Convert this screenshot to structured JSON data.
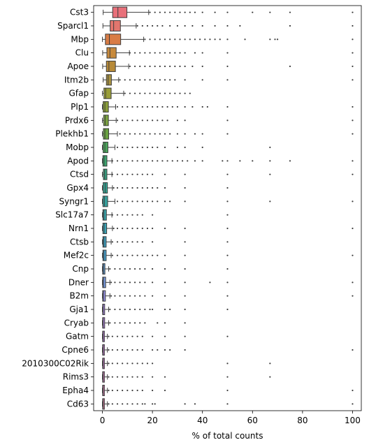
{
  "chart_data": {
    "type": "box",
    "title": "",
    "xlabel": "% of total counts",
    "ylabel": "",
    "xlim": [
      -3.5,
      103.5
    ],
    "xticks": [
      0,
      20,
      40,
      60,
      80,
      100
    ],
    "xtick_labels": [
      "0",
      "20",
      "40",
      "60",
      "80",
      "100"
    ],
    "grid": false,
    "orientation": "horizontal",
    "categories": [
      "Cst3",
      "Sparcl1",
      "Mbp",
      "Clu",
      "Apoe",
      "Itm2b",
      "Gfap",
      "Plp1",
      "Prdx6",
      "Plekhb1",
      "Mobp",
      "Apod",
      "Ctsd",
      "Gpx4",
      "Syngr1",
      "Slc17a7",
      "Nrn1",
      "Ctsb",
      "Mef2c",
      "Cnp",
      "Dner",
      "B2m",
      "Gja1",
      "Cryab",
      "Gatm",
      "Cpne6",
      "2010300C02Rik",
      "Rims3",
      "Epha4",
      "Cd63"
    ],
    "colors": [
      "#e8707a",
      "#e2766e",
      "#d97c45",
      "#c88a3c",
      "#b78a38",
      "#a99240",
      "#999d38",
      "#8a9e38",
      "#7aa240",
      "#6aa341",
      "#4aa55a",
      "#3aa66e",
      "#36a583",
      "#34a292",
      "#36a29e",
      "#37a2a8",
      "#38a2b5",
      "#3da1c2",
      "#45a0ce",
      "#5b9cd6",
      "#779ae0",
      "#9691e8",
      "#a98ae8",
      "#b787e8",
      "#c283e4",
      "#cb80dc",
      "#d27fd0",
      "#d880c2",
      "#de80b4",
      "#e381a6"
    ],
    "boxes": [
      {
        "q1": 4.1,
        "median": 6.2,
        "q3": 9.8,
        "whisker_low": 0.3,
        "whisker_high": 18.5,
        "outliers": [
          19,
          21,
          23,
          25,
          27,
          29,
          31,
          33,
          35,
          37,
          40,
          45,
          50,
          60,
          67,
          75,
          100
        ]
      },
      {
        "q1": 3.1,
        "median": 4.5,
        "q3": 7.2,
        "whisker_low": 0.2,
        "whisker_high": 13.5,
        "outliers": [
          14,
          16,
          18,
          20,
          22,
          24,
          27,
          30,
          33,
          36,
          40,
          45,
          50,
          55,
          75,
          100
        ]
      },
      {
        "q1": 1.2,
        "median": 2.8,
        "q3": 7.3,
        "whisker_low": 0.0,
        "whisker_high": 16.5,
        "outliers": [
          17,
          19,
          21,
          23,
          25,
          27,
          29,
          31,
          33,
          35,
          37,
          39,
          41,
          43,
          45,
          47,
          50,
          57,
          67,
          69,
          70,
          100
        ]
      },
      {
        "q1": 1.8,
        "median": 3.0,
        "q3": 5.5,
        "whisker_low": 0.1,
        "whisker_high": 10.8,
        "outliers": [
          11,
          13,
          15,
          17,
          19,
          21,
          23,
          25,
          27,
          29,
          31,
          33,
          37,
          40,
          50,
          100
        ]
      },
      {
        "q1": 1.6,
        "median": 2.6,
        "q3": 5.2,
        "whisker_low": 0.1,
        "whisker_high": 10.5,
        "outliers": [
          11,
          13,
          15,
          17,
          19,
          21,
          23,
          25,
          27,
          29,
          31,
          33,
          36,
          40,
          50,
          75,
          100
        ]
      },
      {
        "q1": 1.6,
        "median": 2.3,
        "q3": 3.6,
        "whisker_low": 0.3,
        "whisker_high": 6.5,
        "outliers": [
          7,
          9,
          11,
          13,
          15,
          17,
          19,
          21,
          23,
          25,
          27,
          29,
          33,
          40,
          50,
          100
        ]
      },
      {
        "q1": 0.6,
        "median": 1.3,
        "q3": 3.5,
        "whisker_low": 0.0,
        "whisker_high": 8.5,
        "outliers": [
          9,
          11,
          13,
          15,
          17,
          19,
          21,
          23,
          25,
          27,
          29,
          31,
          33,
          35
        ]
      },
      {
        "q1": 0.3,
        "median": 1.0,
        "q3": 2.4,
        "whisker_low": 0.0,
        "whisker_high": 5.3,
        "outliers": [
          6,
          8,
          10,
          12,
          14,
          16,
          18,
          20,
          22,
          24,
          26,
          28,
          30,
          33,
          36,
          40,
          42,
          50,
          100
        ]
      },
      {
        "q1": 0.5,
        "median": 1.1,
        "q3": 2.4,
        "whisker_low": 0.0,
        "whisker_high": 5.5,
        "outliers": [
          6,
          8,
          10,
          12,
          14,
          16,
          18,
          20,
          22,
          24,
          26,
          30,
          33,
          50,
          100
        ]
      },
      {
        "q1": 0.4,
        "median": 1.0,
        "q3": 2.5,
        "whisker_low": 0.0,
        "whisker_high": 6.0,
        "outliers": [
          7,
          9,
          11,
          13,
          15,
          17,
          19,
          21,
          23,
          25,
          27,
          30,
          33,
          37,
          40,
          50,
          100
        ]
      },
      {
        "q1": 0.3,
        "median": 1.0,
        "q3": 2.2,
        "whisker_low": 0.0,
        "whisker_high": 5.0,
        "outliers": [
          6,
          8,
          10,
          12,
          14,
          16,
          18,
          20,
          22,
          25,
          30,
          33,
          40,
          67
        ]
      },
      {
        "q1": 0.2,
        "median": 0.7,
        "q3": 1.8,
        "whisker_low": 0.0,
        "whisker_high": 3.8,
        "outliers": [
          4,
          6,
          8,
          10,
          12,
          14,
          16,
          18,
          20,
          22,
          24,
          26,
          28,
          30,
          32,
          34,
          37,
          40,
          48,
          50,
          55,
          60,
          67,
          75,
          100
        ]
      },
      {
        "q1": 0.4,
        "median": 0.9,
        "q3": 1.8,
        "whisker_low": 0.0,
        "whisker_high": 3.8,
        "outliers": [
          4,
          6,
          8,
          10,
          12,
          14,
          16,
          18,
          20,
          25,
          33,
          50,
          67,
          100
        ]
      },
      {
        "q1": 0.3,
        "median": 1.1,
        "q3": 2.0,
        "whisker_low": 0.0,
        "whisker_high": 4.0,
        "outliers": [
          4.5,
          6,
          8,
          10,
          12,
          14,
          16,
          18,
          20,
          22,
          25,
          33,
          50
        ]
      },
      {
        "q1": 0.2,
        "median": 0.8,
        "q3": 2.1,
        "whisker_low": 0.0,
        "whisker_high": 5.0,
        "outliers": [
          6,
          8,
          10,
          12,
          14,
          16,
          18,
          20,
          22,
          25,
          27,
          33,
          50,
          67,
          100
        ]
      },
      {
        "q1": 0.2,
        "median": 0.6,
        "q3": 1.6,
        "whisker_low": 0.0,
        "whisker_high": 3.8,
        "outliers": [
          4,
          6,
          8,
          10,
          12,
          14,
          16,
          20,
          50
        ]
      },
      {
        "q1": 0.2,
        "median": 0.7,
        "q3": 1.7,
        "whisker_low": 0.0,
        "whisker_high": 4.0,
        "outliers": [
          4.5,
          6,
          8,
          10,
          12,
          14,
          16,
          18,
          20,
          25,
          33,
          50,
          100
        ]
      },
      {
        "q1": 0.2,
        "median": 0.6,
        "q3": 1.5,
        "whisker_low": 0.0,
        "whisker_high": 3.5,
        "outliers": [
          4,
          6,
          8,
          10,
          12,
          14,
          16,
          20,
          33,
          50
        ]
      },
      {
        "q1": 0.2,
        "median": 0.6,
        "q3": 1.5,
        "whisker_low": 0.0,
        "whisker_high": 3.5,
        "outliers": [
          4,
          6,
          8,
          10,
          12,
          14,
          16,
          18,
          20,
          22,
          25,
          33,
          50,
          100
        ]
      },
      {
        "q1": 0.1,
        "median": 0.4,
        "q3": 1.0,
        "whisker_low": 0.0,
        "whisker_high": 2.5,
        "outliers": [
          3,
          5,
          7,
          9,
          11,
          13,
          15,
          17,
          20,
          25,
          33,
          50
        ]
      },
      {
        "q1": 0.1,
        "median": 0.4,
        "q3": 1.3,
        "whisker_low": 0.0,
        "whisker_high": 3.0,
        "outliers": [
          3.5,
          5,
          7,
          9,
          11,
          13,
          15,
          17,
          20,
          25,
          33,
          43,
          50,
          100
        ]
      },
      {
        "q1": 0.1,
        "median": 0.4,
        "q3": 1.2,
        "whisker_low": 0.0,
        "whisker_high": 3.0,
        "outliers": [
          3.5,
          5,
          7,
          9,
          11,
          13,
          15,
          17,
          20,
          25,
          33,
          50,
          100
        ]
      },
      {
        "q1": 0.1,
        "median": 0.3,
        "q3": 0.9,
        "whisker_low": 0.0,
        "whisker_high": 2.5,
        "outliers": [
          3,
          5,
          7,
          9,
          11,
          13,
          15,
          17,
          19,
          20,
          25,
          27,
          33,
          50
        ]
      },
      {
        "q1": 0.1,
        "median": 0.3,
        "q3": 0.9,
        "whisker_low": 0.0,
        "whisker_high": 2.5,
        "outliers": [
          3,
          5,
          7,
          9,
          11,
          13,
          15,
          17,
          22,
          25,
          33
        ]
      },
      {
        "q1": 0.1,
        "median": 0.3,
        "q3": 0.8,
        "whisker_low": 0.0,
        "whisker_high": 2.0,
        "outliers": [
          2.5,
          4,
          6,
          8,
          10,
          12,
          14,
          16,
          20,
          25,
          33,
          50
        ]
      },
      {
        "q1": 0.1,
        "median": 0.3,
        "q3": 0.8,
        "whisker_low": 0.0,
        "whisker_high": 2.0,
        "outliers": [
          2.5,
          4,
          6,
          8,
          10,
          12,
          14,
          16,
          20,
          22,
          25,
          27,
          33,
          100
        ]
      },
      {
        "q1": 0.1,
        "median": 0.3,
        "q3": 0.8,
        "whisker_low": 0.0,
        "whisker_high": 2.0,
        "outliers": [
          2.5,
          4,
          6,
          8,
          10,
          12,
          14,
          16,
          18,
          20,
          50,
          67
        ]
      },
      {
        "q1": 0.1,
        "median": 0.3,
        "q3": 0.8,
        "whisker_low": 0.0,
        "whisker_high": 2.0,
        "outliers": [
          2.5,
          4,
          6,
          8,
          10,
          12,
          14,
          16,
          20,
          25,
          50,
          67
        ]
      },
      {
        "q1": 0.1,
        "median": 0.3,
        "q3": 0.8,
        "whisker_low": 0.0,
        "whisker_high": 2.0,
        "outliers": [
          2.5,
          4,
          6,
          8,
          10,
          12,
          14,
          16,
          20,
          25,
          50,
          100
        ]
      },
      {
        "q1": 0.1,
        "median": 0.3,
        "q3": 0.8,
        "whisker_low": 0.0,
        "whisker_high": 2.0,
        "outliers": [
          2.5,
          4,
          6,
          8,
          10,
          12,
          14,
          16,
          17,
          20,
          21,
          33,
          37,
          50,
          100
        ]
      }
    ]
  }
}
